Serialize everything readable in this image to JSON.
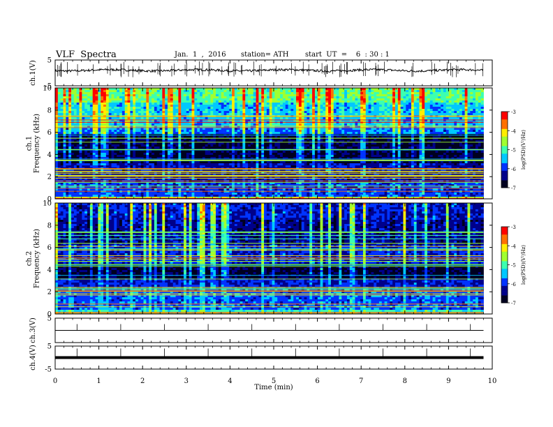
{
  "header": {
    "title": "VLF  Spectra",
    "date": "Jan.  1  ,  2016",
    "station": "station= ATH",
    "start": "start  UT  =    6  : 30 : 1"
  },
  "chart_data": [
    {
      "type": "line",
      "panel": "ch1-waveform",
      "ylabel": "ch.1(V)",
      "ylim": [
        -5,
        5
      ],
      "yticks": [
        "5",
        "-5"
      ],
      "x_range_min": [
        0,
        9.8
      ],
      "baseline_v": 1.0,
      "color": "#000000"
    },
    {
      "type": "heatmap",
      "panel": "ch1-spectrogram",
      "ylabel": "ch.1\nFrequency  (kHz)",
      "ylim": [
        0,
        10
      ],
      "yticks": [
        "0",
        "2",
        "4",
        "6",
        "8",
        "10"
      ],
      "x_range_min": [
        0,
        9.8
      ],
      "bands": [
        {
          "from": 0,
          "to": 0.25,
          "logpsd": -4.6
        },
        {
          "from": 0.25,
          "to": 1.5,
          "logpsd": -6.0
        },
        {
          "from": 1.5,
          "to": 3.2,
          "logpsd": -6.3
        },
        {
          "from": 3.2,
          "to": 5.8,
          "logpsd": -6.8
        },
        {
          "from": 5.8,
          "to": 6.4,
          "logpsd": -5.9
        },
        {
          "from": 6.4,
          "to": 8.6,
          "logpsd": -5.6
        },
        {
          "from": 8.6,
          "to": 10,
          "logpsd": -5.1
        }
      ],
      "colorbar": {
        "label": "log(PSD)(V²/Hz)",
        "ticks": [
          "-3",
          "-4",
          "-5",
          "-6",
          "-7"
        ],
        "range": [
          -7,
          -3
        ]
      }
    },
    {
      "type": "heatmap",
      "panel": "ch2-spectrogram",
      "ylabel": "ch.2\nFrequency  (kHz)",
      "ylim": [
        0,
        10
      ],
      "yticks": [
        "0",
        "2",
        "4",
        "6",
        "8",
        "10"
      ],
      "x_range_min": [
        0,
        9.8
      ],
      "bands": [
        {
          "from": 0,
          "to": 0.4,
          "logpsd": -5.2
        },
        {
          "from": 0.4,
          "to": 2.2,
          "logpsd": -5.9
        },
        {
          "from": 2.2,
          "to": 3.2,
          "logpsd": -6.2
        },
        {
          "from": 3.2,
          "to": 4.5,
          "logpsd": -6.8
        },
        {
          "from": 4.5,
          "to": 6.2,
          "logpsd": -6.2
        },
        {
          "from": 6.2,
          "to": 8.5,
          "logpsd": -6.5
        },
        {
          "from": 8.5,
          "to": 10,
          "logpsd": -6.3
        }
      ],
      "colorbar": {
        "label": "log(PSD)(V²/Hz)",
        "ticks": [
          "-3",
          "-4",
          "-5",
          "-6",
          "-7"
        ],
        "range": [
          -7,
          -3
        ]
      }
    },
    {
      "type": "line",
      "panel": "ch3-waveform",
      "ylabel": "ch.3(V)",
      "ylim": [
        -5,
        5
      ],
      "yticks": [
        "5"
      ],
      "x_range_min": [
        0,
        9.8
      ],
      "baseline_v": 0.0,
      "color": "#000000"
    },
    {
      "type": "line",
      "panel": "ch4-waveform",
      "ylabel": "ch.4(V)",
      "ylim": [
        -5,
        5
      ],
      "yticks": [
        "5",
        "-5"
      ],
      "x_range_min": [
        0,
        9.8
      ],
      "baseline_v": 0.0,
      "color": "#000000"
    }
  ],
  "xaxis": {
    "label": "Time  (min)",
    "range": [
      0,
      10
    ],
    "ticks": [
      "0",
      "1",
      "2",
      "3",
      "4",
      "5",
      "6",
      "7",
      "8",
      "9",
      "10"
    ]
  },
  "colormap": [
    "#000020",
    "#00008a",
    "#0033ff",
    "#00c8ff",
    "#3cffb0",
    "#a0ff30",
    "#ffee00",
    "#ff7000",
    "#ff0000",
    "#ffffff"
  ]
}
